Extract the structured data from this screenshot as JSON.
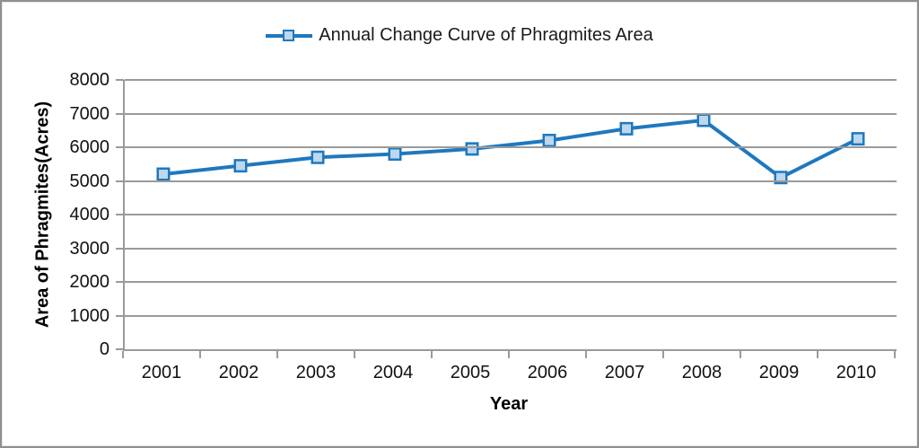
{
  "chart_data": {
    "type": "line",
    "legend": "Annual Change Curve of Phragmites Area",
    "legend_position": "top-center",
    "xlabel": "Year",
    "ylabel": "Area of Phragmites(Acres)",
    "categories": [
      "2001",
      "2002",
      "2003",
      "2004",
      "2005",
      "2006",
      "2007",
      "2008",
      "2009",
      "2010"
    ],
    "series": [
      {
        "name": "Annual Change Curve of Phragmites Area",
        "marker": "square",
        "values": [
          5200,
          5450,
          5700,
          5800,
          5950,
          6200,
          6550,
          6800,
          5100,
          6250
        ]
      }
    ],
    "ylim": [
      0,
      8000
    ],
    "ytick_interval": 1000,
    "yticks": [
      "0",
      "1000",
      "2000",
      "3000",
      "4000",
      "5000",
      "6000",
      "7000",
      "8000"
    ],
    "grid": "horizontal",
    "colors": {
      "line": "#1f78be",
      "marker_fill": "#bdd7ee",
      "marker_border": "#1f78be",
      "gridline": "#9a9a9a",
      "axis": "#9a9a9a",
      "text": "#111111",
      "frame_border": "#8f8f8f",
      "background": "#ffffff"
    }
  }
}
